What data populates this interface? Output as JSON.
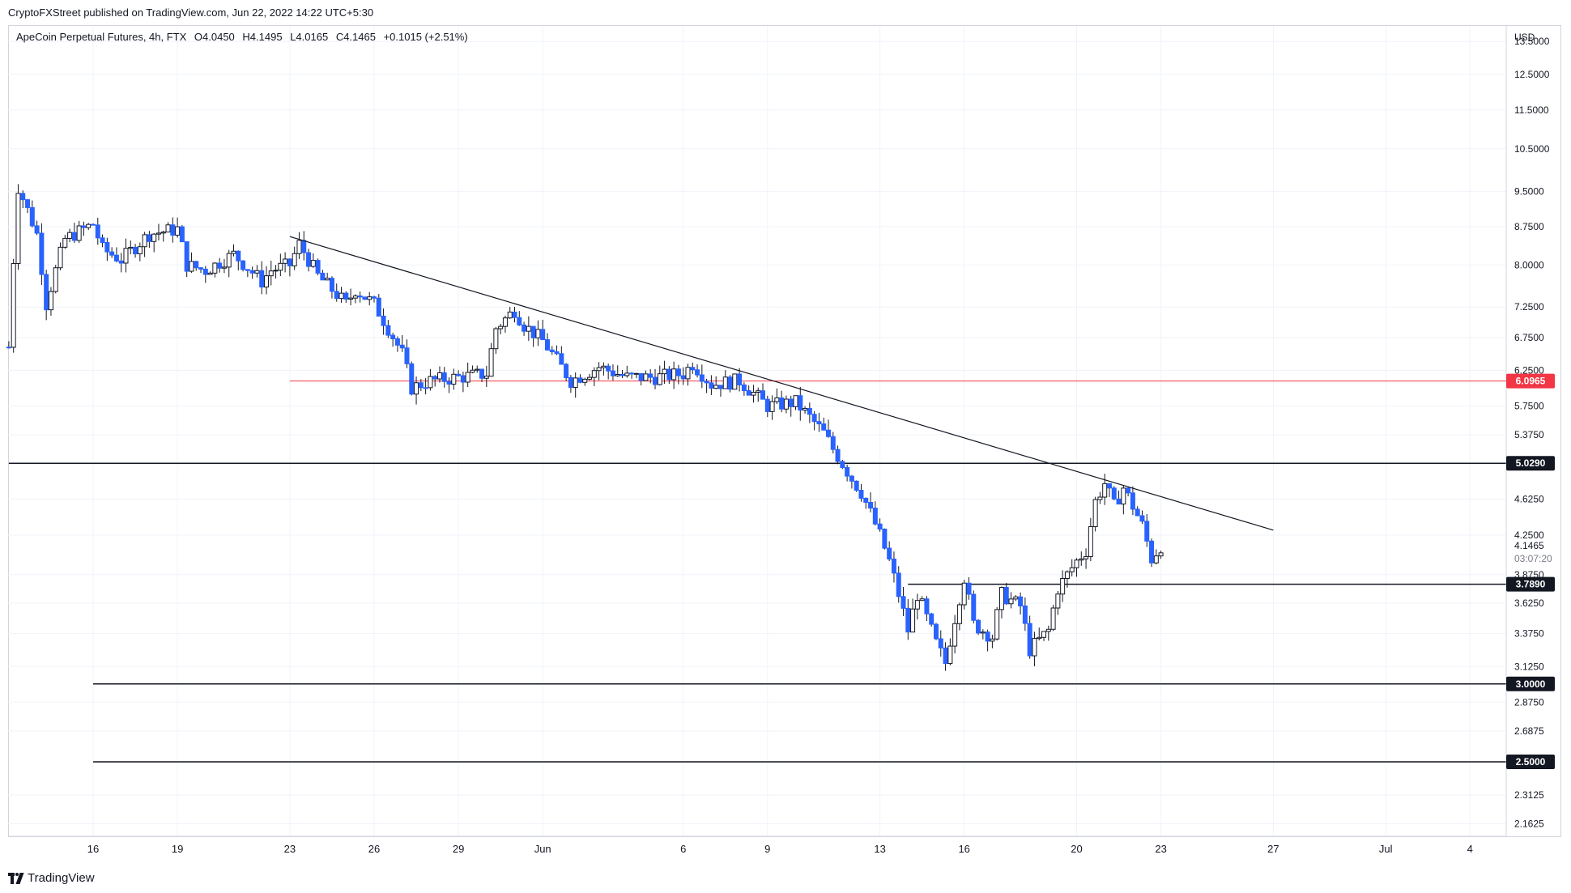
{
  "header": {
    "published": "CryptoFXStreet published on TradingView.com, Jun 22, 2022 14:22 UTC+5:30"
  },
  "symbol_bar": {
    "name": "ApeCoin Perpetual Futures, 4h, FTX",
    "open": "O4.0450",
    "high": "H4.1495",
    "low": "L4.0165",
    "close": "C4.1465",
    "change": "+0.1015 (+2.51%)"
  },
  "footer": {
    "brand": "TradingView"
  },
  "colors": {
    "up": "#ffffff",
    "down": "#2962ff",
    "wick": "#131722",
    "resistance_line": "#f23645",
    "level_line": "#131722",
    "grid": "#f0f3fa"
  },
  "chart_data": {
    "type": "candlestick",
    "interval": "4h",
    "currency": "USD",
    "scale": "log",
    "x_tick_labels": [
      "16",
      "19",
      "23",
      "26",
      "29",
      "Jun",
      "6",
      "9",
      "13",
      "16",
      "20",
      "23",
      "27",
      "Jul",
      "4"
    ],
    "y_tick_labels": [
      "13.5000",
      "12.5000",
      "11.5000",
      "10.5000",
      "9.5000",
      "8.7500",
      "8.0000",
      "7.2500",
      "6.7500",
      "6.2500",
      "5.7500",
      "5.3750",
      "4.6250",
      "4.2500",
      "3.8750",
      "3.6250",
      "3.3750",
      "3.1250",
      "2.8750",
      "2.6875",
      "2.3125",
      "2.1625"
    ],
    "ylim": [
      2.1,
      14.0
    ],
    "last_price": "4.1465",
    "countdown": "03:07:20",
    "price_labels": [
      "6.0965",
      "5.0290",
      "3.7890",
      "3.0000",
      "2.5000"
    ],
    "horizontal_levels": [
      {
        "price": 6.0965,
        "label": "6.0965",
        "color": "red",
        "from": "May 23"
      },
      {
        "price": 5.029,
        "label": "5.0290",
        "color": "black",
        "from": "May 13"
      },
      {
        "price": 3.789,
        "label": "3.7890",
        "color": "black",
        "from": "Jun 14"
      },
      {
        "price": 3.0,
        "label": "3.0000",
        "color": "black",
        "from": "May 16"
      },
      {
        "price": 2.5,
        "label": "2.5000",
        "color": "black",
        "from": "May 16"
      }
    ],
    "trendline": {
      "from": {
        "date": "May 23",
        "price": 8.55
      },
      "to": {
        "date": "Jun 27",
        "price": 4.3
      }
    },
    "price_path": [
      [
        "May 13",
        6.6
      ],
      [
        "May 13",
        9.6
      ],
      [
        "May 14",
        8.6
      ],
      [
        "May 14",
        7.3
      ],
      [
        "May 15",
        8.5
      ],
      [
        "May 16",
        8.8
      ],
      [
        "May 16",
        8.3
      ],
      [
        "May 17",
        8.1
      ],
      [
        "May 18",
        8.6
      ],
      [
        "May 19",
        8.7
      ],
      [
        "May 19",
        8.0
      ],
      [
        "May 20",
        7.9
      ],
      [
        "May 21",
        8.2
      ],
      [
        "May 22",
        7.7
      ],
      [
        "May 22",
        7.9
      ],
      [
        "May 23",
        8.0
      ],
      [
        "May 23",
        8.4
      ],
      [
        "May 24",
        7.8
      ],
      [
        "May 25",
        7.3
      ],
      [
        "May 25",
        7.55
      ],
      [
        "May 26",
        7.3
      ],
      [
        "May 27",
        6.5
      ],
      [
        "May 27",
        6.0
      ],
      [
        "May 28",
        6.1
      ],
      [
        "May 29",
        6.15
      ],
      [
        "May 30",
        6.2
      ],
      [
        "May 30",
        6.9
      ],
      [
        "May 31",
        7.2
      ],
      [
        "May 31",
        6.95
      ],
      [
        "Jun 1",
        6.7
      ],
      [
        "Jun 2",
        6.1
      ],
      [
        "Jun 3",
        6.3
      ],
      [
        "Jun 4",
        6.15
      ],
      [
        "Jun 5",
        6.15
      ],
      [
        "Jun 6",
        6.2
      ],
      [
        "Jun 6",
        6.35
      ],
      [
        "Jun 7",
        6.05
      ],
      [
        "Jun 8",
        6.1
      ],
      [
        "Jun 9",
        5.75
      ],
      [
        "Jun 10",
        5.8
      ],
      [
        "Jun 11",
        5.4
      ],
      [
        "Jun 11",
        5.2
      ],
      [
        "Jun 12",
        4.85
      ],
      [
        "Jun 12",
        4.7
      ],
      [
        "Jun 13",
        4.25
      ],
      [
        "Jun 13",
        4.0
      ],
      [
        "Jun 14",
        3.4
      ],
      [
        "Jun 14",
        3.7
      ],
      [
        "Jun 15",
        3.3
      ],
      [
        "Jun 15",
        3.15
      ],
      [
        "Jun 16",
        3.85
      ],
      [
        "Jun 16",
        3.45
      ],
      [
        "Jun 17",
        3.35
      ],
      [
        "Jun 17",
        3.7
      ],
      [
        "Jun 18",
        3.6
      ],
      [
        "Jun 18",
        3.25
      ],
      [
        "Jun 19",
        3.4
      ],
      [
        "Jun 19",
        3.75
      ],
      [
        "Jun 20",
        4.0
      ],
      [
        "Jun 20",
        4.1
      ],
      [
        "Jun 20",
        4.6
      ],
      [
        "Jun 21",
        4.8
      ],
      [
        "Jun 21",
        4.55
      ],
      [
        "Jun 21",
        4.75
      ],
      [
        "Jun 22",
        4.55
      ],
      [
        "Jun 22",
        4.35
      ],
      [
        "Jun 22",
        4.02
      ],
      [
        "Jun 22",
        4.1465
      ]
    ]
  }
}
